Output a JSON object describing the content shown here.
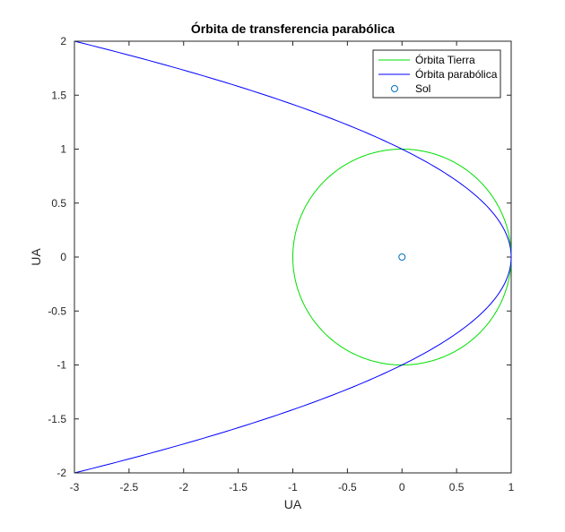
{
  "chart_data": {
    "type": "line",
    "title": "Órbita de transferencia parabólica",
    "xlabel": "UA",
    "ylabel": "UA",
    "xlim": [
      -3,
      1
    ],
    "ylim": [
      -2,
      2
    ],
    "xticks": [
      -3,
      -2.5,
      -2,
      -1.5,
      -1,
      -0.5,
      0,
      0.5,
      1
    ],
    "xtick_labels": [
      "-3",
      "-2.5",
      "-2",
      "-1.5",
      "-1",
      "-0.5",
      "0",
      "0.5",
      "1"
    ],
    "yticks": [
      -2,
      -1.5,
      -1,
      -0.5,
      0,
      0.5,
      1,
      1.5,
      2
    ],
    "ytick_labels": [
      "-2",
      "-1.5",
      "-1",
      "-0.5",
      "0",
      "0.5",
      "1",
      "1.5",
      "2"
    ],
    "grid": false,
    "legend_position": "top-right",
    "series": [
      {
        "name": "Órbita Tierra",
        "kind": "circle",
        "center": [
          0,
          0
        ],
        "radius": 1,
        "color": "#00e000"
      },
      {
        "name": "Órbita parabólica",
        "kind": "parabola",
        "equation": "x = 1 - y^2 / 1",
        "vertex": [
          1,
          0
        ],
        "y_range": [
          -2,
          2
        ],
        "sample_points": [
          [
            -3,
            -2
          ],
          [
            -1.25,
            -1.5
          ],
          [
            0,
            -1
          ],
          [
            0.75,
            -0.5
          ],
          [
            1,
            0
          ],
          [
            0.75,
            0.5
          ],
          [
            0,
            1
          ],
          [
            -1.25,
            1.5
          ],
          [
            -3,
            2
          ]
        ],
        "color": "#0000ff"
      },
      {
        "name": "Sol",
        "kind": "marker",
        "points": [
          [
            0,
            0
          ]
        ],
        "marker": "circle",
        "color": "#0072bd"
      }
    ]
  }
}
